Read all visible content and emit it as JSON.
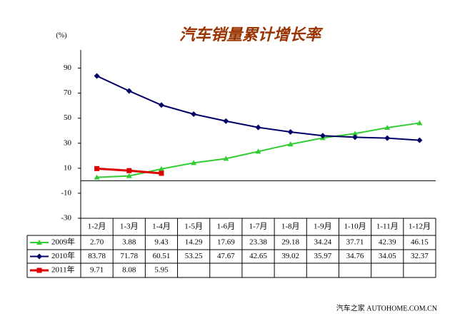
{
  "chart_data": {
    "type": "line",
    "title": "汽车销量累计增长率",
    "y_unit": "(%)",
    "categories": [
      "1-2月",
      "1-3月",
      "1-4月",
      "1-5月",
      "1-6月",
      "1-7月",
      "1-8月",
      "1-9月",
      "1-10月",
      "1-11月",
      "1-12月"
    ],
    "ylim": [
      -30,
      100
    ],
    "yticks": [
      -30,
      -10,
      10,
      30,
      50,
      70,
      90
    ],
    "series": [
      {
        "name": "2009年",
        "color": "#33cc33",
        "marker": "triangle",
        "values": [
          2.7,
          3.88,
          9.43,
          14.29,
          17.69,
          23.38,
          29.18,
          34.24,
          37.71,
          42.39,
          46.15
        ],
        "value_labels": [
          "2.70",
          "3.88",
          "9.43",
          "14.29",
          "17.69",
          "23.38",
          "29.18",
          "34.24",
          "37.71",
          "42.39",
          "46.15"
        ]
      },
      {
        "name": "2010年",
        "color": "#000066",
        "marker": "diamond",
        "values": [
          83.78,
          71.78,
          60.51,
          53.25,
          47.67,
          42.65,
          39.02,
          35.97,
          34.76,
          34.05,
          32.37
        ],
        "value_labels": [
          "83.78",
          "71.78",
          "60.51",
          "53.25",
          "47.67",
          "42.65",
          "39.02",
          "35.97",
          "34.76",
          "34.05",
          "32.37"
        ]
      },
      {
        "name": "2011年",
        "color": "#dd0000",
        "marker": "square",
        "values": [
          9.71,
          8.08,
          5.95,
          null,
          null,
          null,
          null,
          null,
          null,
          null,
          null
        ],
        "value_labels": [
          "9.71",
          "8.08",
          "5.95",
          null,
          null,
          null,
          null,
          null,
          null,
          null,
          null
        ]
      }
    ],
    "watermark": "汽车之家 AUTOHOME.COM.CN"
  }
}
